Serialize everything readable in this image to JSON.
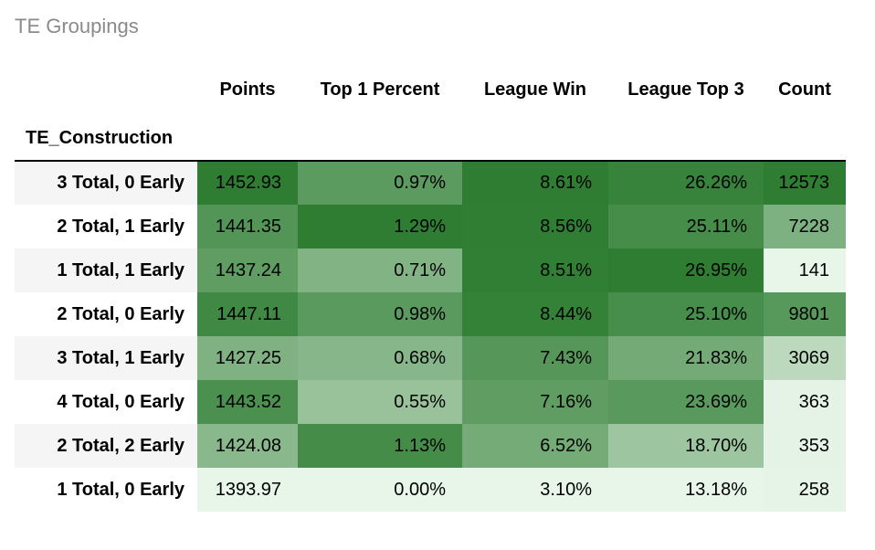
{
  "title": "TE Groupings",
  "index_label": "TE_Construction",
  "columns": [
    "Points",
    "Top 1 Percent",
    "League Win",
    "League Top 3",
    "Count"
  ],
  "color_scale": {
    "min_color": "#e8f5e9",
    "max_color": "#2e7d32"
  },
  "column_ranges": {
    "Points": {
      "min": 1393.97,
      "max": 1452.93
    },
    "Top 1 Percent": {
      "min": 0.0,
      "max": 1.29
    },
    "League Win": {
      "min": 3.1,
      "max": 8.61
    },
    "League Top 3": {
      "min": 13.18,
      "max": 26.95
    },
    "Count": {
      "min": 141,
      "max": 12573
    }
  },
  "rows": [
    {
      "label": "3 Total, 0 Early",
      "Points": 1452.93,
      "Top 1 Percent": 0.97,
      "League Win": 8.61,
      "League Top 3": 26.26,
      "Count": 12573
    },
    {
      "label": "2 Total, 1 Early",
      "Points": 1441.35,
      "Top 1 Percent": 1.29,
      "League Win": 8.56,
      "League Top 3": 25.11,
      "Count": 7228
    },
    {
      "label": "1 Total, 1 Early",
      "Points": 1437.24,
      "Top 1 Percent": 0.71,
      "League Win": 8.51,
      "League Top 3": 26.95,
      "Count": 141
    },
    {
      "label": "2 Total, 0 Early",
      "Points": 1447.11,
      "Top 1 Percent": 0.98,
      "League Win": 8.44,
      "League Top 3": 25.1,
      "Count": 9801
    },
    {
      "label": "3 Total, 1 Early",
      "Points": 1427.25,
      "Top 1 Percent": 0.68,
      "League Win": 7.43,
      "League Top 3": 21.83,
      "Count": 3069
    },
    {
      "label": "4 Total, 0 Early",
      "Points": 1443.52,
      "Top 1 Percent": 0.55,
      "League Win": 7.16,
      "League Top 3": 23.69,
      "Count": 363
    },
    {
      "label": "2 Total, 2 Early",
      "Points": 1424.08,
      "Top 1 Percent": 1.13,
      "League Win": 6.52,
      "League Top 3": 18.7,
      "Count": 353
    },
    {
      "label": "1 Total, 0 Early",
      "Points": 1393.97,
      "Top 1 Percent": 0.0,
      "League Win": 3.1,
      "League Top 3": 13.18,
      "Count": 258
    }
  ],
  "formats": {
    "Points": "fixed2",
    "Top 1 Percent": "pct2",
    "League Win": "pct2",
    "League Top 3": "pct2",
    "Count": "int"
  },
  "typography": {
    "title_fontsize": 22,
    "header_fontsize": 20,
    "cell_fontsize": 20,
    "header_weight": 700,
    "rowlabel_weight": 700
  }
}
